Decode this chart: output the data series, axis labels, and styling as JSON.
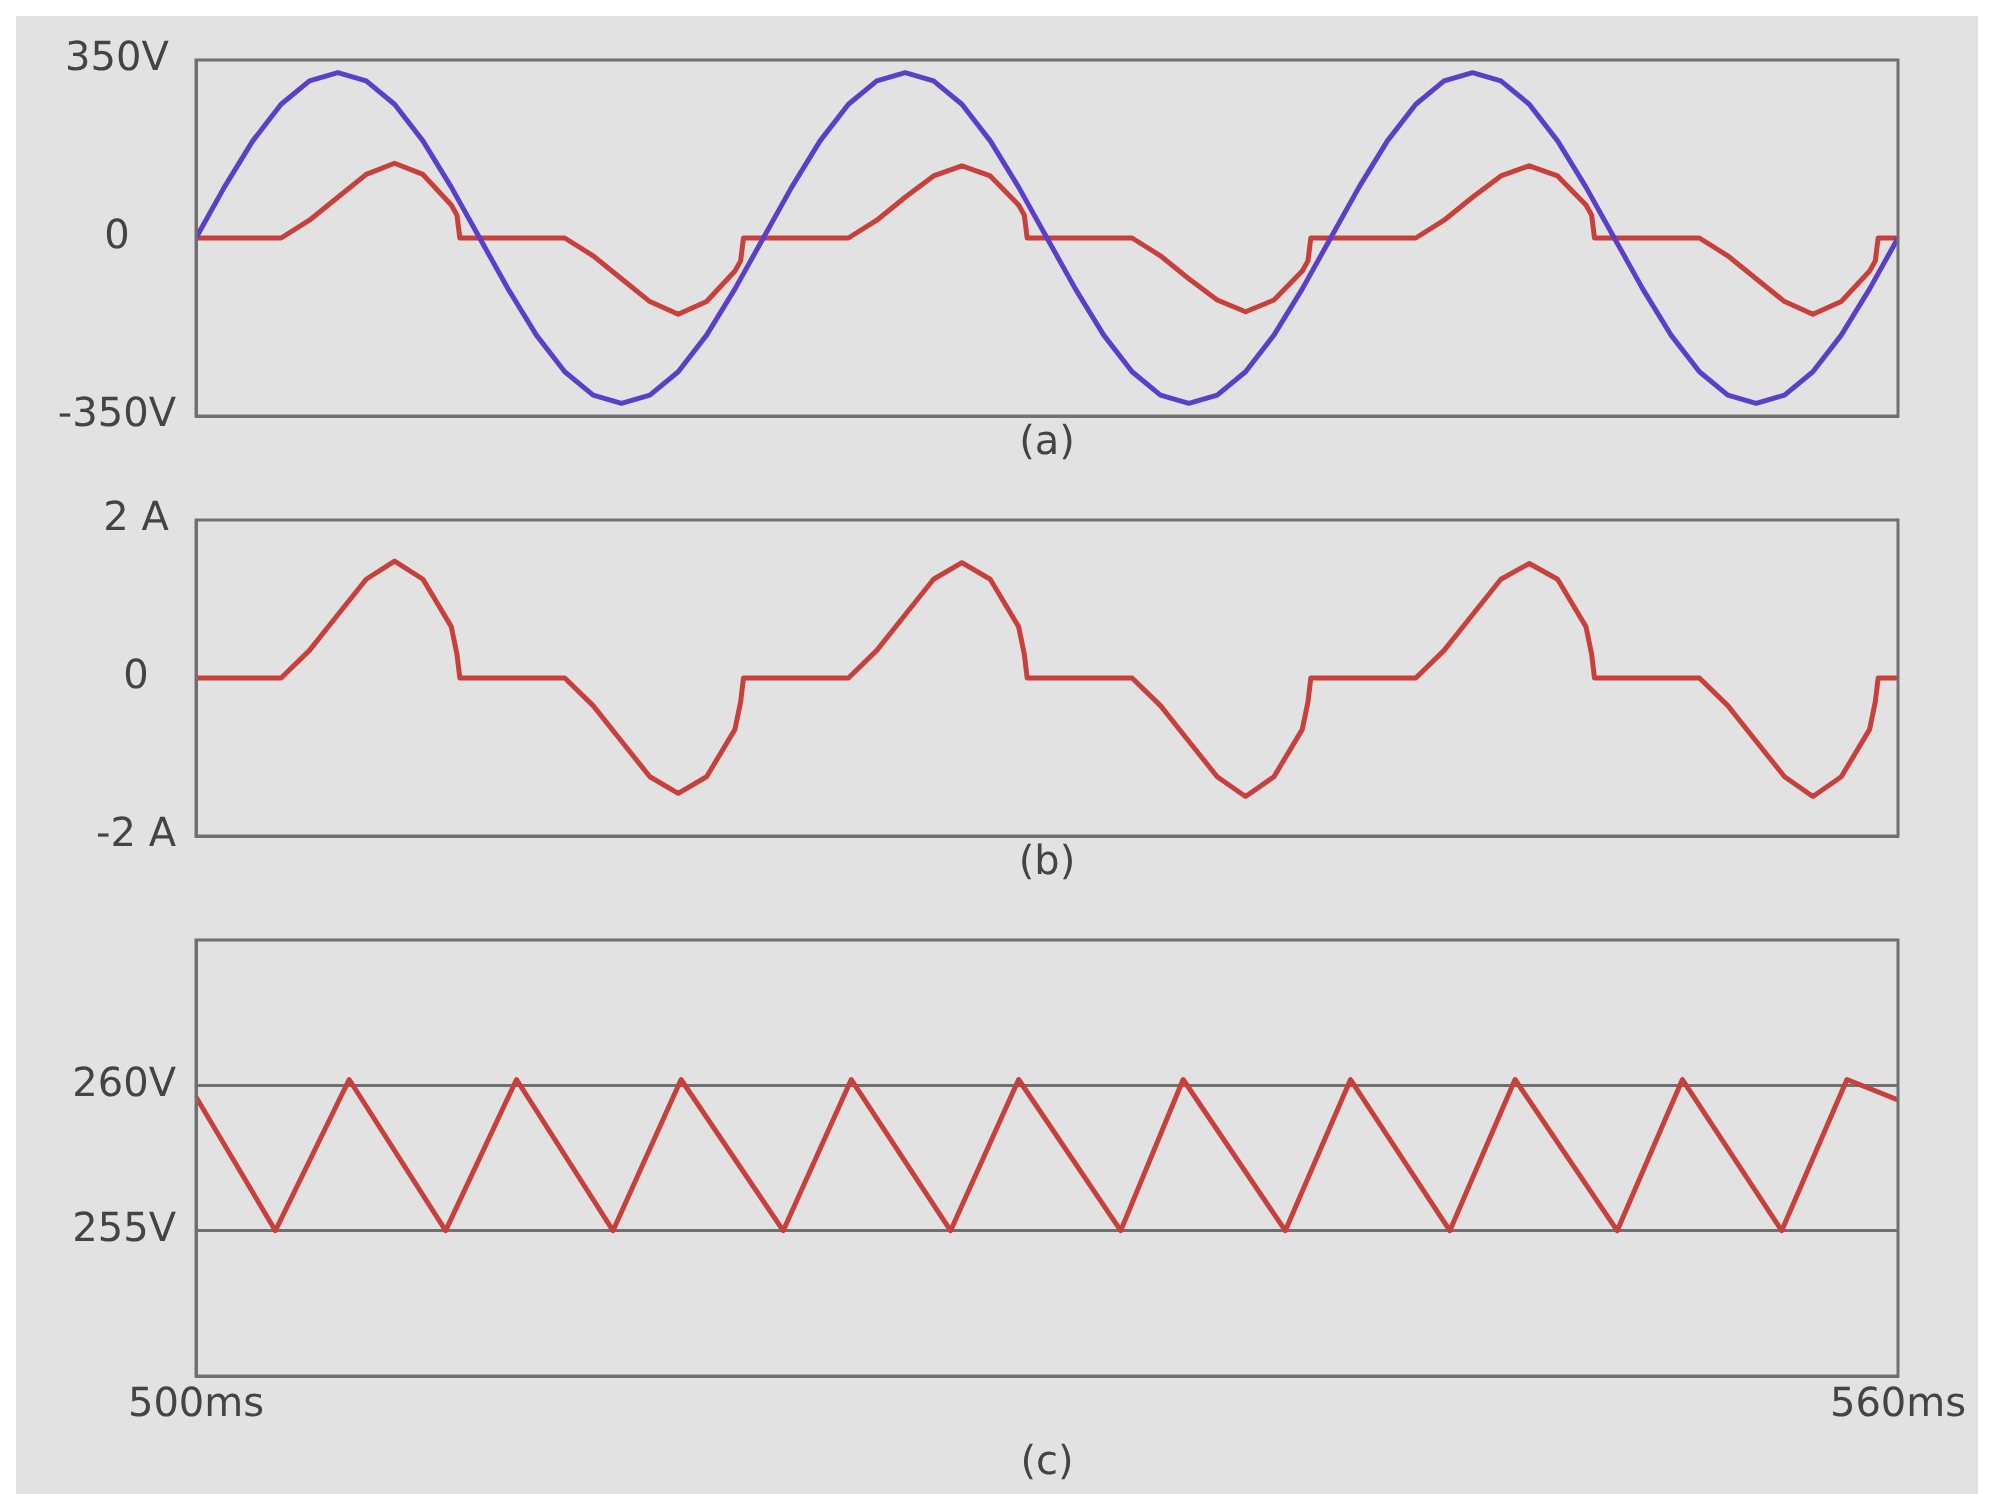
{
  "chart_data": [
    {
      "type": "line",
      "xlabel": "(a)",
      "xlim": [
        500,
        560
      ],
      "ylim": [
        -350,
        350
      ],
      "yticks": [
        {
          "value": -350,
          "label": "-350V"
        },
        0,
        {
          "value": 350,
          "label": "350V"
        }
      ],
      "tick_labels": "y",
      "grid": false,
      "series": [
        {
          "color": "#5b3fc8",
          "x": [
            500,
            501,
            502,
            503,
            504,
            505,
            506,
            507,
            508,
            509,
            510,
            511,
            512,
            513,
            514,
            515,
            516,
            517,
            518,
            519,
            520,
            521,
            522,
            523,
            524,
            525,
            526,
            527,
            528,
            529,
            530,
            531,
            532,
            533,
            534,
            535,
            536,
            537,
            538,
            539,
            540,
            541,
            542,
            543,
            544,
            545,
            546,
            547,
            548,
            549,
            550,
            551,
            552,
            553,
            554,
            555,
            556,
            557,
            558,
            559,
            560
          ],
          "values": [
            0,
            100,
            191,
            263,
            309,
            325,
            309,
            263,
            191,
            100,
            0,
            -100,
            -191,
            -263,
            -309,
            -325,
            -309,
            -263,
            -191,
            -100,
            0,
            100,
            191,
            263,
            309,
            325,
            309,
            263,
            191,
            100,
            0,
            -100,
            -191,
            -263,
            -309,
            -325,
            -309,
            -263,
            -191,
            -100,
            0,
            100,
            191,
            263,
            309,
            325,
            309,
            263,
            191,
            100,
            0,
            -100,
            -191,
            -263,
            -309,
            -325,
            -309,
            -263,
            -191,
            -100,
            0
          ]
        },
        {
          "color": "#c8403c",
          "x": [
            500,
            503,
            504,
            505,
            506,
            507,
            508,
            509,
            509.2,
            509.3,
            513,
            514,
            515,
            516,
            517,
            518,
            519,
            519.2,
            519.3,
            523,
            524,
            525,
            526,
            527,
            528,
            529,
            529.2,
            529.3,
            533,
            534,
            535,
            536,
            537,
            538,
            539,
            539.2,
            539.3,
            543,
            544,
            545,
            546,
            547,
            548,
            549,
            549.2,
            549.3,
            553,
            554,
            555,
            556,
            557,
            558,
            559,
            559.2,
            559.3,
            560
          ],
          "values": [
            0,
            0,
            35,
            80,
            125,
            147,
            125,
            65,
            45,
            0,
            0,
            -35,
            -80,
            -125,
            -150,
            -125,
            -65,
            -45,
            0,
            0,
            35,
            80,
            122,
            142,
            122,
            65,
            45,
            0,
            0,
            -35,
            -80,
            -122,
            -145,
            -122,
            -65,
            -45,
            0,
            0,
            35,
            80,
            122,
            142,
            122,
            65,
            45,
            0,
            0,
            -35,
            -80,
            -125,
            -150,
            -125,
            -65,
            -45,
            0,
            0
          ]
        }
      ]
    },
    {
      "type": "line",
      "xlabel": "(b)",
      "xlim": [
        500,
        560
      ],
      "ylim": [
        -2,
        2
      ],
      "yticks": [
        {
          "value": -2,
          "label": "-2 A"
        },
        0,
        {
          "value": 2,
          "label": "2 A"
        }
      ],
      "tick_labels": "y",
      "grid": false,
      "series": [
        {
          "color": "#c8403c",
          "x": [
            500,
            503,
            504,
            505,
            506,
            507,
            508,
            509,
            509.2,
            509.3,
            513,
            514,
            515,
            516,
            517,
            518,
            519,
            519.2,
            519.3,
            523,
            524,
            525,
            526,
            527,
            528,
            529,
            529.2,
            529.3,
            533,
            534,
            535,
            536,
            537,
            538,
            539,
            539.2,
            539.3,
            543,
            544,
            545,
            546,
            547,
            548,
            549,
            549.2,
            549.3,
            553,
            554,
            555,
            556,
            557,
            558,
            559,
            559.2,
            559.3,
            560
          ],
          "values": [
            0,
            0,
            0.35,
            0.8,
            1.25,
            1.48,
            1.25,
            0.65,
            0.3,
            0,
            0,
            -0.35,
            -0.8,
            -1.25,
            -1.46,
            -1.25,
            -0.65,
            -0.3,
            0,
            0,
            0.35,
            0.8,
            1.25,
            1.46,
            1.25,
            0.65,
            0.3,
            0,
            0,
            -0.35,
            -0.8,
            -1.25,
            -1.5,
            -1.25,
            -0.65,
            -0.3,
            0,
            0,
            0.35,
            0.8,
            1.25,
            1.45,
            1.25,
            0.65,
            0.3,
            0,
            0,
            -0.35,
            -0.8,
            -1.25,
            -1.5,
            -1.25,
            -0.65,
            -0.3,
            0,
            0
          ]
        }
      ]
    },
    {
      "type": "line",
      "xlabel": "(c)",
      "xlim": [
        500,
        560
      ],
      "xticks": [
        {
          "value": 500,
          "label": "500ms"
        },
        {
          "value": 560,
          "label": "560ms"
        }
      ],
      "ylim": [
        250,
        265
      ],
      "yticks": [
        {
          "value": 255,
          "label": "255V"
        },
        {
          "value": 260,
          "label": "260V"
        }
      ],
      "grid": "y",
      "series": [
        {
          "color": "#c8403c",
          "x": [
            500,
            502.8,
            505.4,
            508.8,
            511.3,
            514.7,
            517.1,
            520.7,
            523.1,
            526.6,
            529.0,
            532.6,
            534.8,
            538.4,
            540.7,
            544.2,
            546.5,
            550.1,
            552.4,
            555.9,
            558.2,
            560
          ],
          "values": [
            259.6,
            255,
            260.2,
            255,
            260.2,
            255,
            260.2,
            255,
            260.2,
            255,
            260.2,
            255,
            260.2,
            255,
            260.2,
            255,
            260.2,
            255,
            260.2,
            255,
            260.2,
            259.5
          ]
        }
      ]
    }
  ]
}
